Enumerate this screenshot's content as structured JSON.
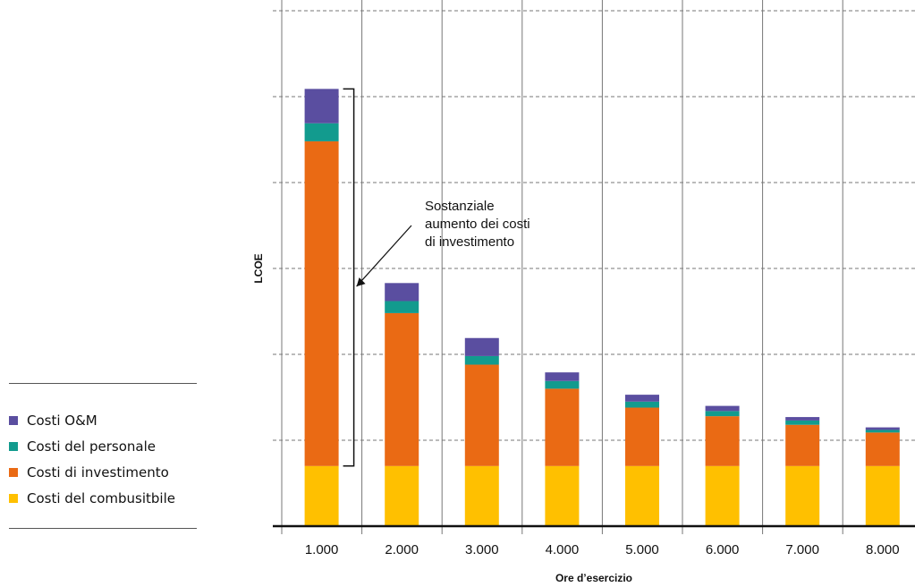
{
  "chart_data": {
    "type": "bar",
    "stacked": true,
    "title": "",
    "xlabel": "Ore d’esercizio",
    "ylabel": "LCOE",
    "categories": [
      "1.000",
      "2.000",
      "3.000",
      "4.000",
      "5.000",
      "6.000",
      "7.000",
      "8.000"
    ],
    "ylim": [
      0,
      6
    ],
    "grid": true,
    "legend_position": "left",
    "series": [
      {
        "name": "Costi del combusitbile",
        "color": "#ffc000",
        "values": [
          0.7,
          0.7,
          0.7,
          0.7,
          0.7,
          0.7,
          0.7,
          0.7
        ]
      },
      {
        "name": "Costi di investimento",
        "color": "#ea6a14",
        "values": [
          3.78,
          1.78,
          1.18,
          0.9,
          0.68,
          0.58,
          0.48,
          0.39
        ]
      },
      {
        "name": "Costi del personale",
        "color": "#129b8e",
        "values": [
          0.21,
          0.14,
          0.1,
          0.09,
          0.07,
          0.06,
          0.05,
          0.03
        ]
      },
      {
        "name": "Costi O&M",
        "color": "#5a4ea0",
        "values": [
          0.4,
          0.21,
          0.21,
          0.1,
          0.08,
          0.06,
          0.04,
          0.03
        ]
      }
    ],
    "annotation": {
      "lines": [
        "Sostanziale",
        "aumento dei costi",
        "di investimento"
      ],
      "category": "1.000",
      "bracket_series": "Costi di investimento"
    }
  }
}
